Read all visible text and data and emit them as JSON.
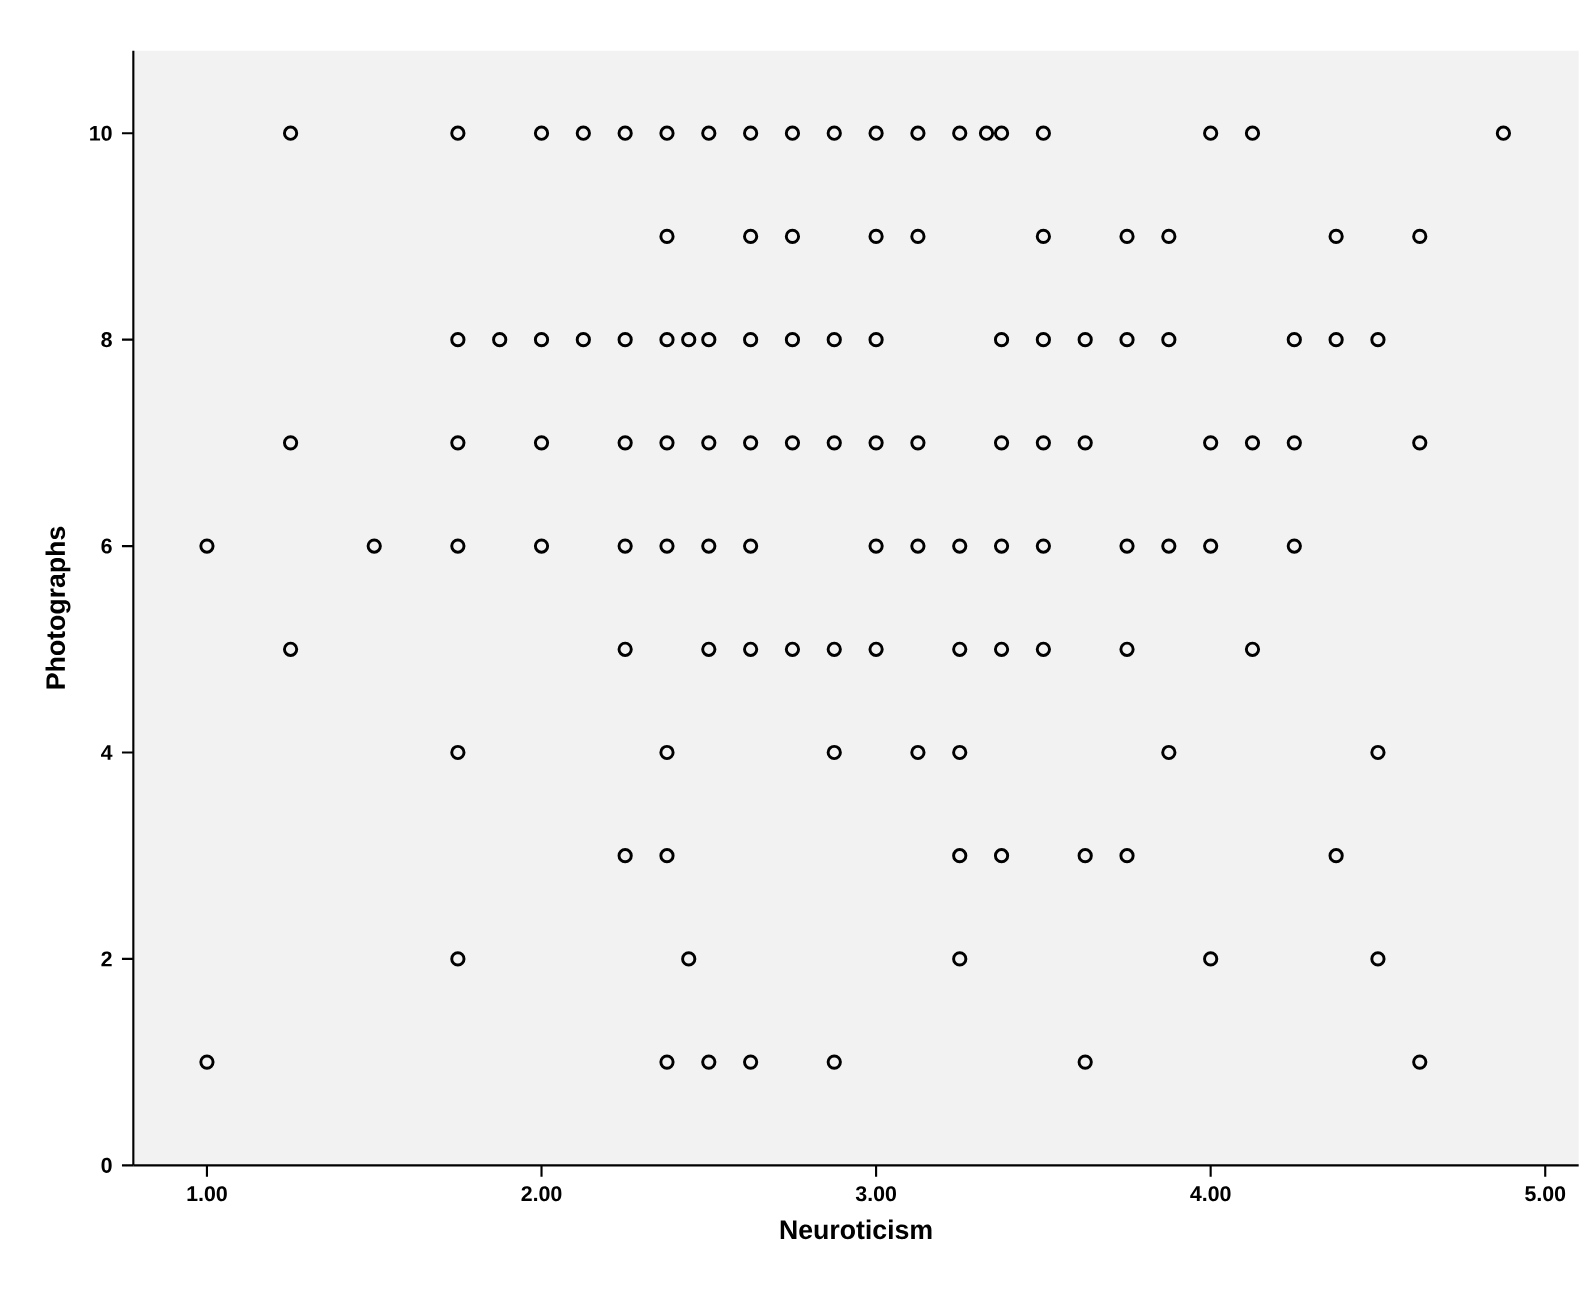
{
  "chart_data": {
    "type": "scatter",
    "xlabel": "Neuroticism",
    "ylabel": "Photographs",
    "x": [
      1.25,
      1.75,
      2.0,
      2.125,
      2.25,
      2.375,
      2.5,
      2.625,
      2.75,
      2.875,
      3.0,
      3.125,
      3.25,
      3.33,
      3.375,
      3.5,
      4.0,
      4.125,
      4.875,
      2.375,
      2.625,
      2.75,
      3.0,
      3.125,
      3.5,
      3.75,
      3.875,
      4.375,
      4.625,
      1.75,
      1.875,
      2.0,
      2.125,
      2.25,
      2.375,
      2.44,
      2.5,
      2.625,
      2.75,
      2.875,
      3.0,
      3.375,
      3.5,
      3.625,
      3.75,
      3.875,
      4.25,
      4.375,
      4.5,
      1.25,
      1.75,
      2.0,
      2.25,
      2.375,
      2.5,
      2.625,
      2.75,
      2.875,
      3.0,
      3.125,
      3.375,
      3.5,
      3.625,
      4.0,
      4.125,
      4.25,
      4.625,
      1.0,
      1.5,
      1.75,
      2.0,
      2.25,
      2.375,
      2.5,
      2.625,
      3.0,
      3.125,
      3.25,
      3.375,
      3.5,
      3.75,
      3.875,
      4.0,
      4.25,
      1.25,
      2.25,
      2.5,
      2.625,
      2.75,
      2.875,
      3.0,
      3.25,
      3.375,
      3.5,
      3.75,
      4.125,
      1.75,
      2.375,
      2.875,
      3.125,
      3.25,
      3.875,
      4.5,
      2.25,
      2.375,
      3.25,
      3.375,
      3.625,
      3.75,
      4.375,
      1.75,
      2.44,
      3.25,
      4.0,
      4.5,
      1.0,
      2.375,
      2.5,
      2.625,
      2.875,
      3.625,
      4.625
    ],
    "values": [
      10,
      10,
      10,
      10,
      10,
      10,
      10,
      10,
      10,
      10,
      10,
      10,
      10,
      10,
      10,
      10,
      10,
      10,
      10,
      9,
      9,
      9,
      9,
      9,
      9,
      9,
      9,
      9,
      9,
      8,
      8,
      8,
      8,
      8,
      8,
      8,
      8,
      8,
      8,
      8,
      8,
      8,
      8,
      8,
      8,
      8,
      8,
      8,
      8,
      7,
      7,
      7,
      7,
      7,
      7,
      7,
      7,
      7,
      7,
      7,
      7,
      7,
      7,
      7,
      7,
      7,
      7,
      6,
      6,
      6,
      6,
      6,
      6,
      6,
      6,
      6,
      6,
      6,
      6,
      6,
      6,
      6,
      6,
      6,
      5,
      5,
      5,
      5,
      5,
      5,
      5,
      5,
      5,
      5,
      5,
      5,
      4,
      4,
      4,
      4,
      4,
      4,
      4,
      3,
      3,
      3,
      3,
      3,
      3,
      3,
      2,
      2,
      2,
      2,
      2,
      1,
      1,
      1,
      1,
      1,
      1,
      1
    ],
    "color": "#000000",
    "marker": "circle",
    "xlim": [
      0.78,
      5.1
    ],
    "ylim": [
      0,
      10.8
    ],
    "xticks": [
      {
        "value": 1,
        "label": "1.00"
      },
      {
        "value": 2,
        "label": "2.00"
      },
      {
        "value": 3,
        "label": "3.00"
      },
      {
        "value": 4,
        "label": "4.00"
      },
      {
        "value": 5,
        "label": "5.00"
      }
    ],
    "yticks": [
      0,
      2,
      4,
      6,
      8,
      10
    ]
  }
}
